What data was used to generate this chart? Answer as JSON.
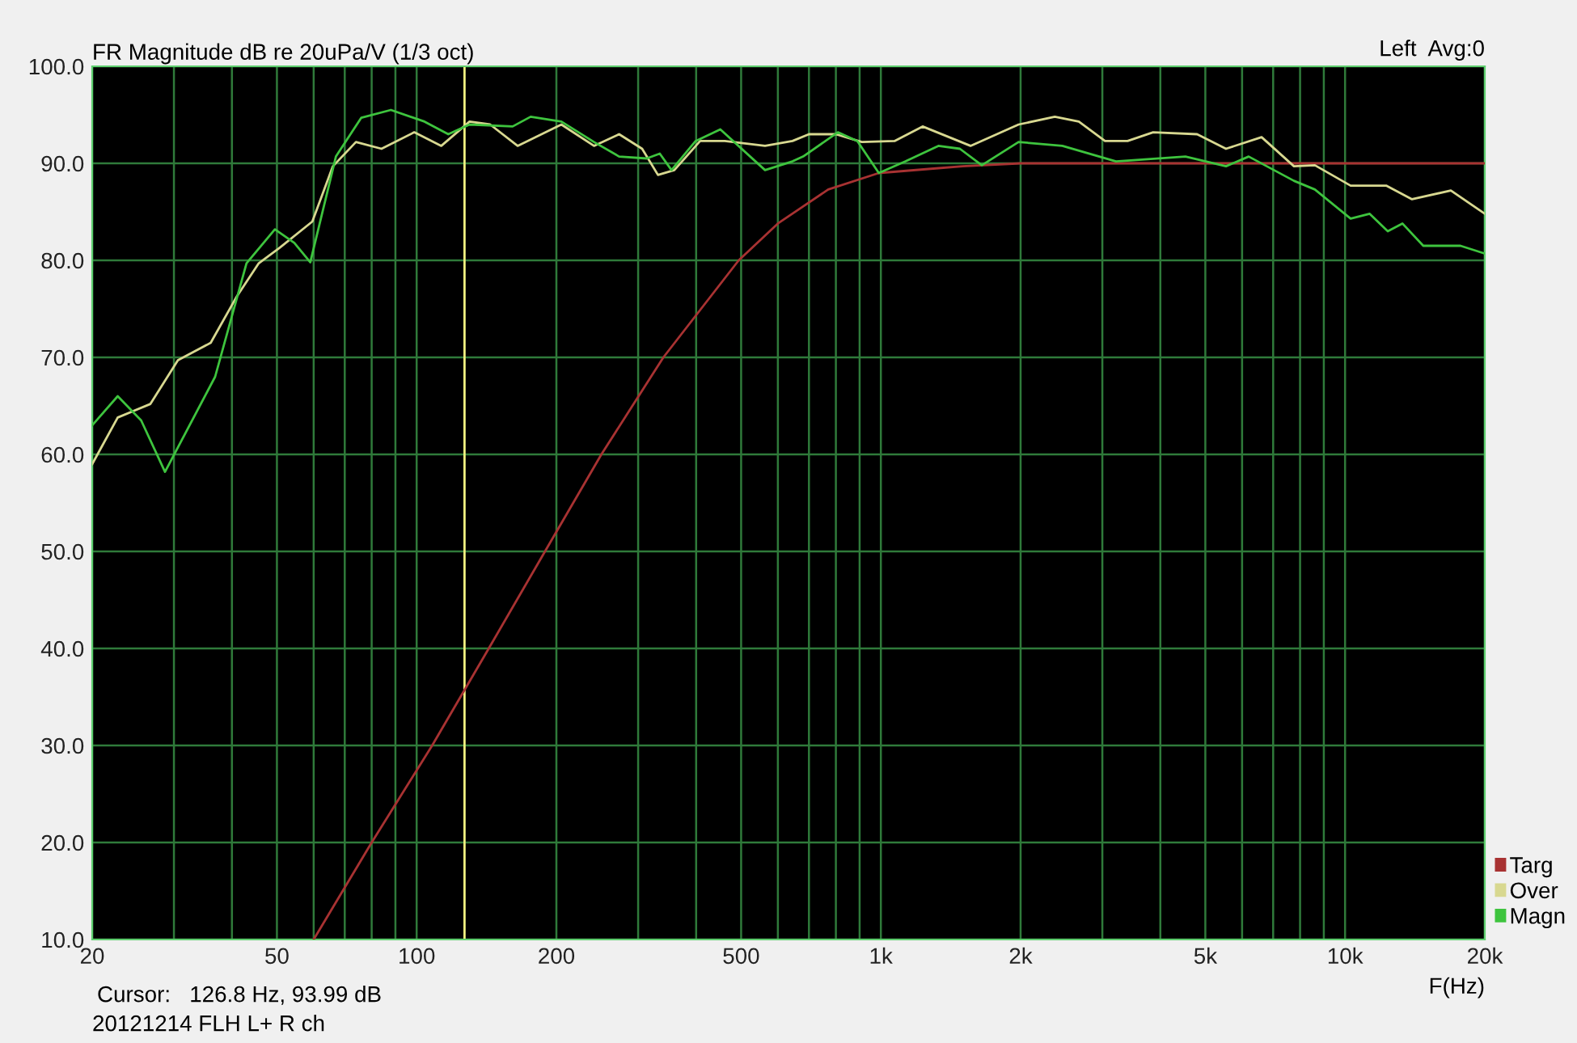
{
  "chart_data": {
    "type": "line",
    "title": "FR Magnitude dB re 20uPa/V (1/3 oct)",
    "xlabel": "F(Hz)",
    "annotations": [
      "Left  Avg:0",
      "Cursor:   126.8 Hz, 93.99 dB",
      "20121214 FLH L+ R ch"
    ],
    "log": "x",
    "grid": true,
    "legend": "bottom right",
    "line_style": "solid",
    "xlim": [
      20,
      20000
    ],
    "xticks": [
      20,
      {
        "value": 30,
        "label": null
      },
      {
        "value": 40,
        "label": null
      },
      50,
      {
        "value": 60,
        "label": null
      },
      {
        "value": 70,
        "label": null
      },
      {
        "value": 80,
        "label": null
      },
      {
        "value": 90,
        "label": null
      },
      100,
      200,
      {
        "value": 300,
        "label": null
      },
      {
        "value": 400,
        "label": null
      },
      500,
      {
        "value": 600,
        "label": null
      },
      {
        "value": 700,
        "label": null
      },
      {
        "value": 800,
        "label": null
      },
      {
        "value": 900,
        "label": null
      },
      {
        "value": 1000,
        "label": "1k"
      },
      {
        "value": 2000,
        "label": "2k"
      },
      {
        "value": 3000,
        "label": null
      },
      {
        "value": 4000,
        "label": null
      },
      {
        "value": 5000,
        "label": "5k"
      },
      {
        "value": 6000,
        "label": null
      },
      {
        "value": 7000,
        "label": null
      },
      {
        "value": 8000,
        "label": null
      },
      {
        "value": 9000,
        "label": null
      },
      {
        "value": 10000,
        "label": "10k"
      },
      {
        "value": 20000,
        "label": "20k"
      }
    ],
    "ylim": [
      10,
      100
    ],
    "yticks": [
      {
        "value": 10,
        "label": "10.0"
      },
      {
        "value": 20,
        "label": "20.0"
      },
      {
        "value": 30,
        "label": "30.0"
      },
      {
        "value": 40,
        "label": "40.0"
      },
      {
        "value": 50,
        "label": "50.0"
      },
      {
        "value": 60,
        "label": "60.0"
      },
      {
        "value": 70,
        "label": "70.0"
      },
      {
        "value": 80,
        "label": "80.0"
      },
      {
        "value": 90,
        "label": "90.0"
      },
      {
        "value": 100,
        "label": "100.0"
      }
    ],
    "ref_lines": [
      {
        "axis": "x",
        "value": 126.8,
        "color": "#f0f080"
      }
    ],
    "series": [
      {
        "name": "Targ",
        "color": "#a83232",
        "x": [
          60,
          80,
          108,
          143,
          189,
          250,
          340,
          494,
          600,
          770,
          990,
          1330,
          1500,
          2000,
          20000
        ],
        "values": [
          10,
          20,
          30,
          40,
          50,
          60,
          70,
          80,
          83.8,
          87.3,
          89,
          89.5,
          89.7,
          90,
          90
        ]
      },
      {
        "name": "Over",
        "color": "#d8d890",
        "x": [
          20,
          22.7,
          26.7,
          30.6,
          36,
          41,
          45.7,
          50.7,
          59.6,
          66,
          74,
          84,
          98.8,
          113,
          130,
          144,
          165,
          205,
          241,
          273,
          306,
          331,
          359,
          408,
          461,
          563,
          645,
          700,
          800,
          910,
          1070,
          1230,
          1560,
          1980,
          2370,
          2670,
          3040,
          3400,
          3860,
          4800,
          5540,
          6610,
          7760,
          8610,
          10280,
          12260,
          13940,
          16900,
          20000
        ],
        "values": [
          59,
          63.8,
          65.2,
          69.7,
          71.5,
          76.3,
          79.7,
          81.3,
          84,
          89.7,
          92.2,
          91.5,
          93.2,
          91.8,
          94.3,
          94,
          91.8,
          94,
          91.8,
          93,
          91.5,
          88.8,
          89.3,
          92.3,
          92.3,
          91.8,
          92.3,
          93,
          93,
          92.2,
          92.3,
          93.8,
          91.8,
          94,
          94.8,
          94.3,
          92.3,
          92.3,
          93.2,
          93,
          91.5,
          92.7,
          89.7,
          89.8,
          87.7,
          87.7,
          86.3,
          87.2,
          84.8
        ]
      },
      {
        "name": "Magn",
        "color": "#3ec43e",
        "x": [
          20,
          22.7,
          25.5,
          28.7,
          36.8,
          43,
          49.5,
          54.5,
          59,
          67,
          76,
          88,
          104,
          117,
          130,
          161,
          176,
          205,
          241,
          273,
          313,
          334,
          354,
          399,
          451,
          563,
          645,
          680,
          808,
          890,
          990,
          1130,
          1330,
          1480,
          1650,
          1980,
          2460,
          3210,
          4530,
          5540,
          6200,
          7760,
          8610,
          10280,
          11300,
          12360,
          13290,
          14740,
          17730,
          20000
        ],
        "values": [
          63,
          66,
          63.5,
          58.2,
          68,
          79.7,
          83.2,
          81.8,
          79.8,
          90.7,
          94.7,
          95.5,
          94.3,
          93,
          94,
          93.8,
          94.8,
          94.3,
          92.2,
          90.7,
          90.5,
          91,
          89.3,
          92.3,
          93.5,
          89.3,
          90.2,
          90.7,
          93.2,
          92.3,
          89,
          90.2,
          91.8,
          91.5,
          89.8,
          92.2,
          91.8,
          90.2,
          90.7,
          89.7,
          90.7,
          88.2,
          87.3,
          84.3,
          84.8,
          83,
          83.8,
          81.5,
          81.5,
          80.7
        ]
      }
    ]
  }
}
